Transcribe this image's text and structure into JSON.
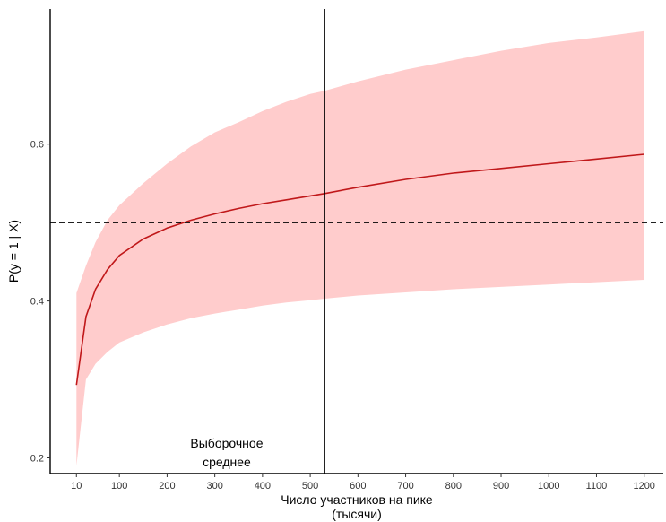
{
  "chart_data": {
    "type": "line",
    "xlabel_line1": "Число участников на пике",
    "xlabel_line2": "(тысячи)",
    "ylabel": "P(y = 1 | X)",
    "xlim": [
      -45,
      1240
    ],
    "ylim": [
      0.18,
      0.77
    ],
    "x_ticks": [
      10,
      100,
      200,
      300,
      400,
      500,
      600,
      700,
      800,
      900,
      1000,
      1100,
      1200
    ],
    "x_tick_labels": [
      "10",
      "100",
      "200",
      "300",
      "400",
      "500",
      "600",
      "700",
      "800",
      "900",
      "1000",
      "1100",
      "1200"
    ],
    "y_ticks": [
      0.2,
      0.4,
      0.6
    ],
    "y_tick_labels": [
      "0.2",
      "0.4",
      "0.6"
    ],
    "series": [
      {
        "x": [
          10,
          30,
          50,
          75,
          100,
          150,
          200,
          250,
          300,
          350,
          400,
          450,
          500,
          530,
          600,
          700,
          800,
          900,
          1000,
          1100,
          1200
        ],
        "y": [
          0.293,
          0.38,
          0.415,
          0.44,
          0.458,
          0.479,
          0.493,
          0.503,
          0.511,
          0.518,
          0.524,
          0.529,
          0.534,
          0.537,
          0.545,
          0.555,
          0.563,
          0.569,
          0.575,
          0.581,
          0.587
        ],
        "lower": [
          0.19,
          0.3,
          0.32,
          0.335,
          0.347,
          0.36,
          0.37,
          0.378,
          0.384,
          0.389,
          0.394,
          0.398,
          0.401,
          0.403,
          0.407,
          0.411,
          0.415,
          0.418,
          0.421,
          0.424,
          0.427
        ],
        "upper": [
          0.41,
          0.445,
          0.475,
          0.503,
          0.522,
          0.55,
          0.575,
          0.597,
          0.615,
          0.628,
          0.642,
          0.654,
          0.664,
          0.668,
          0.68,
          0.695,
          0.707,
          0.719,
          0.729,
          0.736,
          0.744
        ],
        "line_color": "#c0181a",
        "band_color": "#ffcccc"
      }
    ],
    "hline": {
      "y": 0.5,
      "style": "dashed",
      "color": "#000000"
    },
    "vline": {
      "x": 530,
      "color": "#000000"
    },
    "annotation": {
      "line1": "Выборочное",
      "line2": "среднее",
      "x": 325,
      "y1": 0.213,
      "y2": 0.189
    },
    "grid": false
  }
}
